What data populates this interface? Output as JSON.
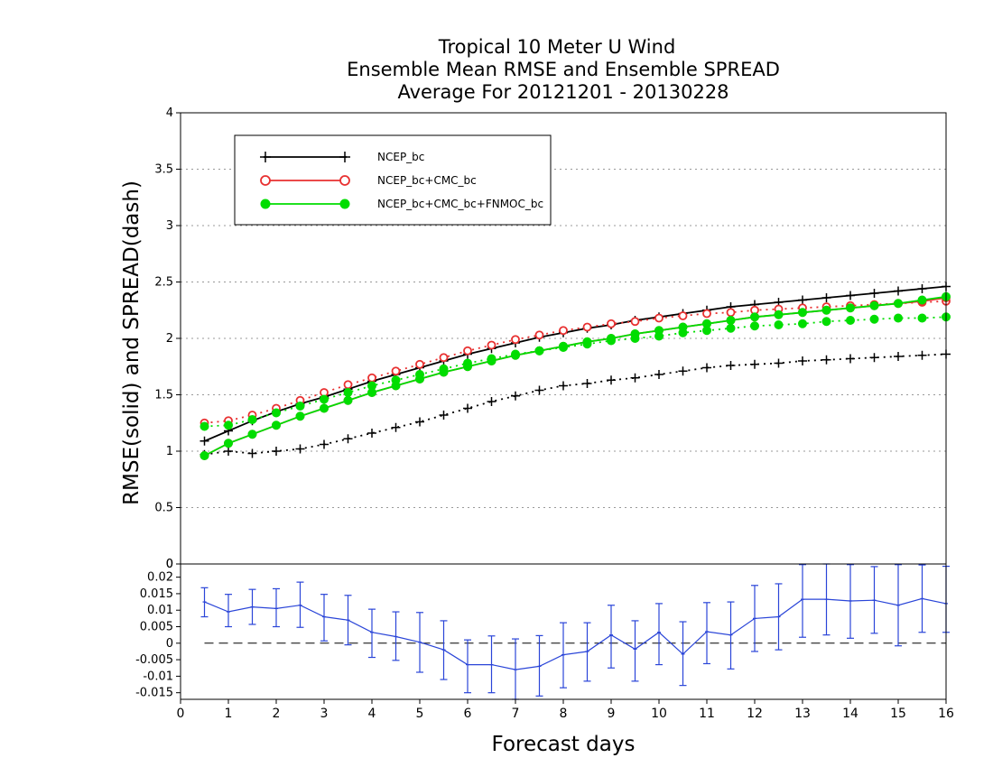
{
  "chart_data": [
    {
      "type": "line",
      "panel": "main",
      "title_lines": [
        "Tropical 10 Meter U Wind",
        "Ensemble Mean RMSE and Ensemble SPREAD",
        "Average For 20121201 - 20130228"
      ],
      "ylabel": "RMSE(solid) and SPREAD(dash)",
      "xlabel": "Forecast days",
      "xlim": [
        0,
        16
      ],
      "ylim": [
        0,
        4
      ],
      "yticks": [
        "0",
        "0.5",
        "1",
        "1.5",
        "2",
        "2.5",
        "3",
        "3.5",
        "4"
      ],
      "xticks": [
        "0",
        "1",
        "2",
        "3",
        "4",
        "5",
        "6",
        "7",
        "8",
        "9",
        "10",
        "11",
        "12",
        "13",
        "14",
        "15",
        "16"
      ],
      "grid": "horizontal dotted",
      "legend_position": "top-left",
      "x": [
        0.5,
        1,
        1.5,
        2,
        2.5,
        3,
        3.5,
        4,
        4.5,
        5,
        5.5,
        6,
        6.5,
        7,
        7.5,
        8,
        8.5,
        9,
        9.5,
        10,
        10.5,
        11,
        11.5,
        12,
        12.5,
        13,
        13.5,
        14,
        14.5,
        15,
        15.5,
        16
      ],
      "series": [
        {
          "name": "NCEP_bc",
          "color": "#000000",
          "marker": "plus",
          "rmse": [
            1.09,
            1.18,
            1.27,
            1.35,
            1.42,
            1.48,
            1.55,
            1.62,
            1.68,
            1.74,
            1.8,
            1.86,
            1.91,
            1.96,
            2.01,
            2.05,
            2.09,
            2.12,
            2.16,
            2.19,
            2.22,
            2.25,
            2.28,
            2.3,
            2.32,
            2.34,
            2.36,
            2.38,
            2.4,
            2.42,
            2.44,
            2.46
          ],
          "spread": [
            0.97,
            1.0,
            0.98,
            1.0,
            1.02,
            1.06,
            1.11,
            1.16,
            1.21,
            1.26,
            1.32,
            1.38,
            1.44,
            1.49,
            1.54,
            1.58,
            1.6,
            1.63,
            1.65,
            1.68,
            1.71,
            1.74,
            1.76,
            1.77,
            1.78,
            1.8,
            1.81,
            1.82,
            1.83,
            1.84,
            1.85,
            1.86
          ]
        },
        {
          "name": "NCEP_bc+CMC_bc",
          "color": "#e83030",
          "marker": "open-circle",
          "rmse": [
            0.96,
            1.07,
            1.15,
            1.23,
            1.31,
            1.38,
            1.45,
            1.52,
            1.58,
            1.64,
            1.7,
            1.75,
            1.8,
            1.85,
            1.89,
            1.93,
            1.97,
            2.0,
            2.04,
            2.07,
            2.1,
            2.13,
            2.16,
            2.19,
            2.21,
            2.23,
            2.25,
            2.27,
            2.29,
            2.31,
            2.33,
            2.36
          ],
          "spread": [
            1.25,
            1.27,
            1.32,
            1.38,
            1.45,
            1.52,
            1.59,
            1.65,
            1.71,
            1.77,
            1.83,
            1.89,
            1.94,
            1.99,
            2.03,
            2.07,
            2.1,
            2.13,
            2.15,
            2.18,
            2.2,
            2.22,
            2.23,
            2.25,
            2.26,
            2.27,
            2.28,
            2.29,
            2.3,
            2.31,
            2.32,
            2.33
          ]
        },
        {
          "name": "NCEP_bc+CMC_bc+FNMOC_bc",
          "color": "#00dd00",
          "marker": "filled-circle",
          "rmse": [
            0.96,
            1.07,
            1.15,
            1.23,
            1.31,
            1.38,
            1.45,
            1.52,
            1.58,
            1.64,
            1.7,
            1.75,
            1.8,
            1.85,
            1.89,
            1.93,
            1.97,
            2.0,
            2.04,
            2.07,
            2.1,
            2.13,
            2.16,
            2.19,
            2.21,
            2.23,
            2.25,
            2.27,
            2.29,
            2.31,
            2.34,
            2.37
          ],
          "spread": [
            1.22,
            1.23,
            1.28,
            1.34,
            1.4,
            1.46,
            1.52,
            1.58,
            1.63,
            1.68,
            1.73,
            1.78,
            1.82,
            1.86,
            1.89,
            1.92,
            1.95,
            1.98,
            2.0,
            2.02,
            2.05,
            2.07,
            2.09,
            2.11,
            2.12,
            2.13,
            2.15,
            2.16,
            2.17,
            2.18,
            2.18,
            2.19
          ]
        }
      ]
    },
    {
      "type": "errorbar",
      "panel": "difference",
      "ylim": [
        -0.017,
        0.024
      ],
      "yticks": [
        "0.02",
        "0.015",
        "0.01",
        "0.005",
        "0",
        "-0.005",
        "-0.01",
        "-0.015"
      ],
      "top_tick_label": "0",
      "xlim": [
        0,
        16
      ],
      "color": "#2a45d8",
      "x": [
        0.5,
        1,
        1.5,
        2,
        2.5,
        3,
        3.5,
        4,
        4.5,
        5,
        5.5,
        6,
        6.5,
        7,
        7.5,
        8,
        8.5,
        9,
        9.5,
        10,
        10.5,
        11,
        11.5,
        12,
        12.5,
        13,
        13.5,
        14,
        14.5,
        15,
        15.5,
        16
      ],
      "values": [
        0.0125,
        0.0095,
        0.011,
        0.0105,
        0.0115,
        0.008,
        0.007,
        0.0033,
        0.002,
        0.0003,
        -0.002,
        -0.0065,
        -0.0065,
        -0.008,
        -0.007,
        -0.0035,
        -0.0025,
        0.0025,
        -0.0018,
        0.0033,
        -0.0033,
        0.0035,
        0.0025,
        0.0075,
        0.008,
        0.0133,
        0.0133,
        0.0128,
        0.013,
        0.0115,
        0.0135,
        0.012
      ],
      "lower": [
        0.008,
        0.005,
        0.0057,
        0.005,
        0.0048,
        0.0007,
        -0.0005,
        -0.0043,
        -0.0052,
        -0.0088,
        -0.011,
        -0.015,
        -0.015,
        -0.017,
        -0.016,
        -0.0135,
        -0.0115,
        -0.0075,
        -0.0115,
        -0.0065,
        -0.0128,
        -0.0062,
        -0.0078,
        -0.0025,
        -0.002,
        0.0018,
        0.0025,
        0.0015,
        0.003,
        -0.0008,
        0.0033,
        0.0033
      ],
      "upper": [
        0.0168,
        0.0148,
        0.0163,
        0.0165,
        0.0185,
        0.0148,
        0.0145,
        0.0103,
        0.0095,
        0.0093,
        0.0068,
        0.001,
        0.0022,
        0.0013,
        0.0023,
        0.0062,
        0.0062,
        0.0115,
        0.0068,
        0.012,
        0.0065,
        0.0123,
        0.0125,
        0.0175,
        0.018,
        0.0238,
        0.0245,
        0.0238,
        0.0232,
        0.0238,
        0.0237,
        0.0233
      ]
    }
  ]
}
